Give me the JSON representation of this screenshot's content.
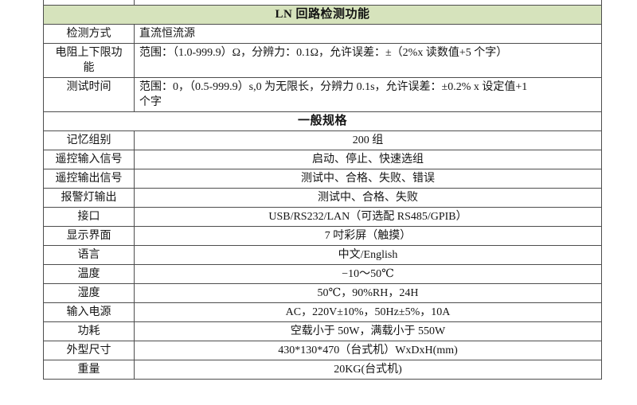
{
  "colors": {
    "table_border": "#4d4d4d",
    "page_background": "#ffffff",
    "text": "#141414"
  },
  "table": {
    "sections": [
      {
        "header": "LN 回路检测功能",
        "header_bg": "#d6e3bc",
        "rows": [
          {
            "label": "检测方式",
            "value": "直流恒流源",
            "align": "left"
          },
          {
            "label": "电阻上下限功能",
            "value": "范围：（1.0-999.9）Ω，分辨力：0.1Ω，允许误差：±（2%x 读数值+5 个字）",
            "align": "left"
          },
          {
            "label": "测试时间",
            "value": "范围：0，（0.5-999.9）s,0 为无限长，分辨力 0.1s，允许误差：±0.2% x 设定值+1\n个字",
            "align": "left"
          }
        ]
      },
      {
        "header": "一般规格",
        "header_bg": "#ffffff",
        "rows": [
          {
            "label": "记忆组别",
            "value": "200 组",
            "align": "center"
          },
          {
            "label": "遥控输入信号",
            "value": "启动、停止、快速选组",
            "align": "center"
          },
          {
            "label": "遥控输出信号",
            "value": "测试中、合格、失败、错误",
            "align": "center"
          },
          {
            "label": "报警灯输出",
            "value": "测试中、合格、失败",
            "align": "center"
          },
          {
            "label": "接口",
            "value": "USB/RS232/LAN（可选配 RS485/GPIB）",
            "align": "center"
          },
          {
            "label": "显示界面",
            "value": "7 吋彩屏（触摸）",
            "align": "center"
          },
          {
            "label": "语言",
            "value": "中文/English",
            "align": "center"
          },
          {
            "label": "温度",
            "value": "−10～50℃",
            "align": "center"
          },
          {
            "label": "湿度",
            "value": "50℃，90%RH，24H",
            "align": "center"
          },
          {
            "label": "输入电源",
            "value": "AC，220V±10%，50Hz±5%，10A",
            "align": "center"
          },
          {
            "label": "功耗",
            "value": "空载小于 50W，满载小于 550W",
            "align": "center"
          },
          {
            "label": "外型尺寸",
            "value": "430*130*470（台式机）WxDxH(mm)",
            "align": "center"
          },
          {
            "label": "重量",
            "value": "20KG(台式机)",
            "align": "center"
          }
        ]
      }
    ]
  }
}
